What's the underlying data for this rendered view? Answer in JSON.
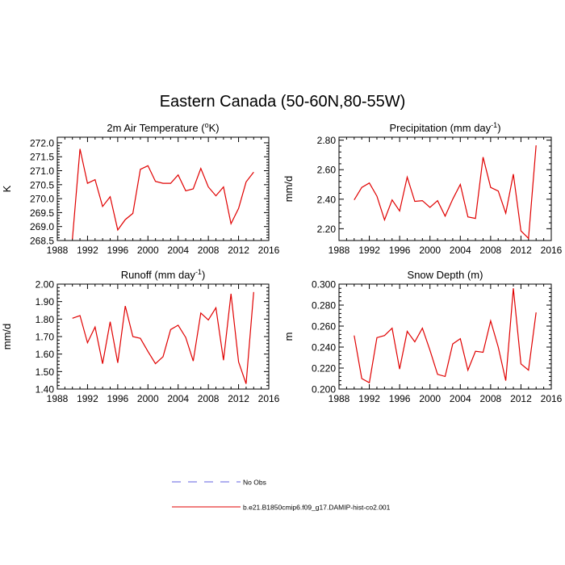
{
  "title": "Eastern Canada (50-60N,80-55W)",
  "legend": {
    "items": [
      {
        "label": "No Obs",
        "color": "#6060e0",
        "dashed": true
      },
      {
        "label": "b.e21.B1850cmip6.f09_g17.DAMIP-hist-co2.001",
        "color": "#e00000",
        "dashed": false
      }
    ]
  },
  "chart_data": [
    {
      "type": "line",
      "title_main": "2m Air Temperature (",
      "title_sup": "o",
      "title_end": "K)",
      "ylabel": "K",
      "xlim": [
        1988,
        2016
      ],
      "ylim": [
        268.5,
        272.2
      ],
      "xticks": [
        1988,
        1992,
        1996,
        2000,
        2004,
        2008,
        2012,
        2016
      ],
      "yticks": [
        268.5,
        269.0,
        269.5,
        270.0,
        270.5,
        271.0,
        271.5,
        272.0
      ],
      "ytick_labels": [
        "268.5",
        "269.0",
        "269.5",
        "270.0",
        "270.5",
        "271.0",
        "271.5",
        "272.0"
      ],
      "x": [
        1990,
        1991,
        1992,
        1993,
        1994,
        1995,
        1996,
        1997,
        1998,
        1999,
        2000,
        2001,
        2002,
        2003,
        2004,
        2005,
        2006,
        2007,
        2008,
        2009,
        2010,
        2011,
        2012,
        2013,
        2014
      ],
      "series": [
        {
          "color": "#e00000",
          "values": [
            268.55,
            271.78,
            270.55,
            270.68,
            269.72,
            270.07,
            268.88,
            269.25,
            269.47,
            271.05,
            271.18,
            270.62,
            270.55,
            270.55,
            270.85,
            270.28,
            270.35,
            271.08,
            270.42,
            270.1,
            270.42,
            269.1,
            269.65,
            270.6,
            270.95
          ]
        }
      ]
    },
    {
      "type": "line",
      "title_main": "Precipitation (mm day",
      "title_sup": "-1",
      "title_end": ")",
      "ylabel": "mm/d",
      "xlim": [
        1988,
        2016
      ],
      "ylim": [
        2.12,
        2.82
      ],
      "xticks": [
        1988,
        1992,
        1996,
        2000,
        2004,
        2008,
        2012,
        2016
      ],
      "yticks": [
        2.2,
        2.4,
        2.6,
        2.8
      ],
      "ytick_labels": [
        "2.20",
        "2.40",
        "2.60",
        "2.80"
      ],
      "x": [
        1990,
        1991,
        1992,
        1993,
        1994,
        1995,
        1996,
        1997,
        1998,
        1999,
        2000,
        2001,
        2002,
        2003,
        2004,
        2005,
        2006,
        2007,
        2008,
        2009,
        2010,
        2011,
        2012,
        2013,
        2014
      ],
      "series": [
        {
          "color": "#e00000",
          "values": [
            2.395,
            2.48,
            2.51,
            2.42,
            2.26,
            2.395,
            2.32,
            2.55,
            2.385,
            2.39,
            2.345,
            2.39,
            2.285,
            2.4,
            2.5,
            2.28,
            2.27,
            2.685,
            2.48,
            2.455,
            2.305,
            2.57,
            2.185,
            2.135,
            2.765
          ]
        }
      ]
    },
    {
      "type": "line",
      "title_main": "Runoff (mm day",
      "title_sup": "-1",
      "title_end": ")",
      "ylabel": "mm/d",
      "xlim": [
        1988,
        2016
      ],
      "ylim": [
        1.4,
        2.0
      ],
      "xticks": [
        1988,
        1992,
        1996,
        2000,
        2004,
        2008,
        2012,
        2016
      ],
      "yticks": [
        1.4,
        1.5,
        1.6,
        1.7,
        1.8,
        1.9,
        2.0
      ],
      "ytick_labels": [
        "1.40",
        "1.50",
        "1.60",
        "1.70",
        "1.80",
        "1.90",
        "2.00"
      ],
      "x": [
        1990,
        1991,
        1992,
        1993,
        1994,
        1995,
        1996,
        1997,
        1998,
        1999,
        2000,
        2001,
        2002,
        2003,
        2004,
        2005,
        2006,
        2007,
        2008,
        2009,
        2010,
        2011,
        2012,
        2013,
        2014
      ],
      "series": [
        {
          "color": "#e00000",
          "values": [
            1.805,
            1.82,
            1.665,
            1.755,
            1.545,
            1.785,
            1.55,
            1.875,
            1.7,
            1.69,
            1.615,
            1.545,
            1.585,
            1.74,
            1.765,
            1.695,
            1.56,
            1.835,
            1.795,
            1.865,
            1.565,
            1.945,
            1.555,
            1.43,
            1.955
          ]
        }
      ]
    },
    {
      "type": "line",
      "title_main": "Snow Depth (m)",
      "title_sup": "",
      "title_end": "",
      "ylabel": "m",
      "xlim": [
        1988,
        2016
      ],
      "ylim": [
        0.2,
        0.3
      ],
      "xticks": [
        1988,
        1992,
        1996,
        2000,
        2004,
        2008,
        2012,
        2016
      ],
      "yticks": [
        0.2,
        0.22,
        0.24,
        0.26,
        0.28,
        0.3
      ],
      "ytick_labels": [
        "0.200",
        "0.220",
        "0.240",
        "0.260",
        "0.280",
        "0.300"
      ],
      "x": [
        1990,
        1991,
        1992,
        1993,
        1994,
        1995,
        1996,
        1997,
        1998,
        1999,
        2000,
        2001,
        2002,
        2003,
        2004,
        2005,
        2006,
        2007,
        2008,
        2009,
        2010,
        2011,
        2012,
        2013,
        2014
      ],
      "series": [
        {
          "color": "#e00000",
          "values": [
            0.251,
            0.21,
            0.206,
            0.249,
            0.251,
            0.258,
            0.219,
            0.255,
            0.245,
            0.258,
            0.237,
            0.214,
            0.212,
            0.243,
            0.248,
            0.218,
            0.236,
            0.235,
            0.265,
            0.24,
            0.208,
            0.296,
            0.224,
            0.218,
            0.273
          ]
        }
      ]
    }
  ]
}
